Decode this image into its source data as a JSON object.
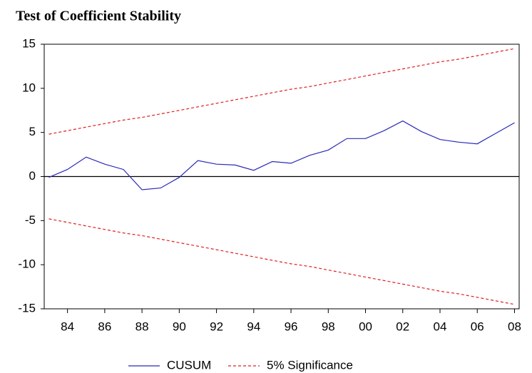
{
  "chart_data": {
    "type": "line",
    "title": "Test of Coefficient Stability",
    "x": [
      1983,
      1984,
      1985,
      1986,
      1987,
      1988,
      1989,
      1990,
      1991,
      1992,
      1993,
      1994,
      1995,
      1996,
      1997,
      1998,
      1999,
      2000,
      2001,
      2002,
      2003,
      2004,
      2005,
      2006,
      2007,
      2008
    ],
    "series": [
      {
        "name": "CUSUM",
        "color": "#2a2ab8",
        "dashed": false,
        "values": [
          -0.1,
          0.8,
          2.2,
          1.4,
          0.8,
          -1.5,
          -1.3,
          -0.1,
          1.8,
          1.4,
          1.3,
          0.7,
          1.7,
          1.5,
          2.4,
          3.0,
          4.3,
          4.3,
          5.2,
          6.3,
          5.1,
          4.2,
          3.9,
          3.7,
          4.9,
          6.1
        ]
      },
      {
        "name": "5% Significance",
        "color": "#e02020",
        "dashed": true,
        "values": [
          4.8,
          5.2,
          5.6,
          6.0,
          6.4,
          6.7,
          7.1,
          7.5,
          7.9,
          8.3,
          8.7,
          9.1,
          9.5,
          9.9,
          10.2,
          10.6,
          11.0,
          11.4,
          11.8,
          12.2,
          12.6,
          13.0,
          13.3,
          13.7,
          14.1,
          14.5
        ],
        "lower": [
          -4.8,
          -5.2,
          -5.6,
          -6.0,
          -6.4,
          -6.7,
          -7.1,
          -7.5,
          -7.9,
          -8.3,
          -8.7,
          -9.1,
          -9.5,
          -9.9,
          -10.2,
          -10.6,
          -11.0,
          -11.4,
          -11.8,
          -12.2,
          -12.6,
          -13.0,
          -13.3,
          -13.7,
          -14.1,
          -14.5
        ]
      }
    ],
    "xlim": [
      1982.75,
      2008.25
    ],
    "xticks": [
      {
        "value": 1984,
        "label": "84"
      },
      {
        "value": 1986,
        "label": "86"
      },
      {
        "value": 1988,
        "label": "88"
      },
      {
        "value": 1990,
        "label": "90"
      },
      {
        "value": 1992,
        "label": "92"
      },
      {
        "value": 1994,
        "label": "94"
      },
      {
        "value": 1996,
        "label": "96"
      },
      {
        "value": 1998,
        "label": "98"
      },
      {
        "value": 2000,
        "label": "00"
      },
      {
        "value": 2002,
        "label": "02"
      },
      {
        "value": 2004,
        "label": "04"
      },
      {
        "value": 2006,
        "label": "06"
      },
      {
        "value": 2008,
        "label": "08"
      }
    ],
    "ylim": [
      -15,
      15
    ],
    "yticks": [
      -15,
      -10,
      -5,
      0,
      5,
      10,
      15
    ],
    "zero_line": true,
    "legend": "bottom"
  }
}
